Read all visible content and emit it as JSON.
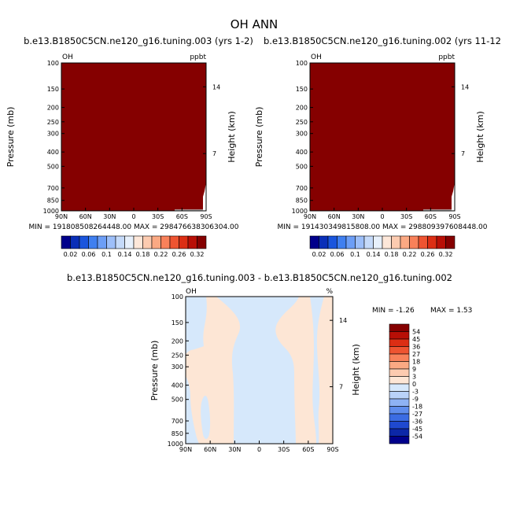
{
  "title": "OH ANN",
  "panels": [
    {
      "id": "case1",
      "title": "b.e13.B1850C5CN.ne120_g16.tuning.003 (yrs 1-2)",
      "var_label": "OH",
      "unit_label": "ppbt",
      "ylabel": "Pressure (mb)",
      "ylabel_right": "Height (km)",
      "minmax": "MIN = 191808508264448.00     MAX = 298476638306304.00",
      "fill_color": "#850000"
    },
    {
      "id": "case2",
      "title": "b.e13.B1850C5CN.ne120_g16.tuning.002 (yrs 11-12",
      "var_label": "OH",
      "unit_label": "ppbt",
      "ylabel": "Pressure (mb)",
      "ylabel_right": "Height (km)",
      "minmax": "MIN = 191430349815808.00     MAX = 298809397608448.00",
      "fill_color": "#850000"
    }
  ],
  "diff_panel": {
    "title": "b.e13.B1850C5CN.ne120_g16.tuning.003 - b.e13.B1850C5CN.ne120_g16.tuning.002",
    "var_label": "OH",
    "unit_label": "%",
    "ylabel": "Pressure (mb)",
    "ylabel_right": "Height (km)",
    "min_label": "MIN = -1.26",
    "max_label": "MAX =  1.53",
    "pos_color": "#fde6d5",
    "neg_color": "#d6e8fb"
  },
  "chart_data": {
    "type": "heatmap",
    "pressure_ticks": [
      "100",
      "150",
      "200",
      "250",
      "300",
      "400",
      "500",
      "700",
      "850",
      "1000"
    ],
    "pressure_values": [
      100,
      150,
      200,
      250,
      300,
      400,
      500,
      700,
      850,
      1000
    ],
    "height_ticks": [
      "14",
      "7"
    ],
    "height_pressure": [
      145,
      410
    ],
    "lat_ticks": [
      "90N",
      "60N",
      "30N",
      "0",
      "30S",
      "60S",
      "90S"
    ],
    "lat_values": [
      90,
      60,
      30,
      0,
      -30,
      -60,
      -90
    ],
    "colorbar_top": {
      "labels": [
        "0.02",
        "0.06",
        "0.1",
        "0.14",
        "0.18",
        "0.22",
        "0.26",
        "0.32"
      ],
      "colors": [
        "#00008b",
        "#0a2fb8",
        "#1a55dd",
        "#3f7ff0",
        "#6c9ef6",
        "#9dbff9",
        "#c5daf9",
        "#e7f0fb",
        "#fde7d9",
        "#fccbb0",
        "#fba983",
        "#f8815a",
        "#ee5431",
        "#dc2e14",
        "#b80f06",
        "#850000"
      ]
    },
    "colorbar_diff": {
      "labels": [
        "54",
        "45",
        "36",
        "27",
        "18",
        "9",
        "3",
        "0",
        "-3",
        "-9",
        "-18",
        "-27",
        "-36",
        "-45",
        "-54"
      ],
      "colors": [
        "#850000",
        "#b80f06",
        "#dc2e14",
        "#ee5431",
        "#f8815a",
        "#fba983",
        "#fccbb0",
        "#fde6d5",
        "#d6e8fb",
        "#b9d2f8",
        "#8eb2f4",
        "#5f8ded",
        "#3b6ce3",
        "#1f49cf",
        "#0c27a8",
        "#00008b"
      ]
    },
    "diff_min": -1.26,
    "diff_max": 1.53
  }
}
